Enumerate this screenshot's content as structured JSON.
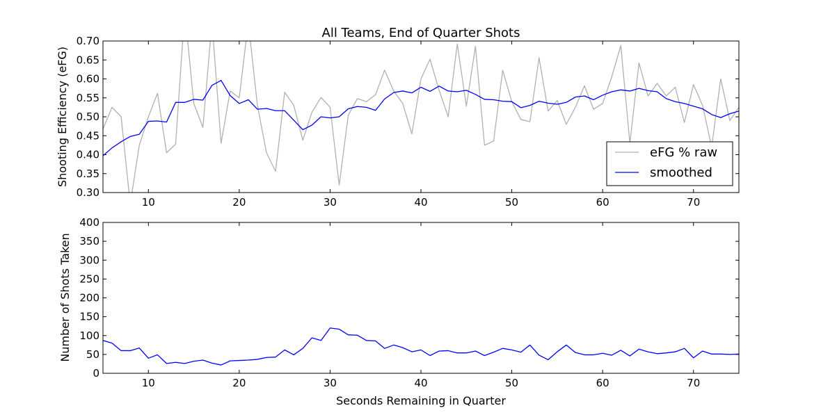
{
  "chart_data": [
    {
      "type": "line",
      "title": "All Teams, End of Quarter Shots",
      "xlabel": "",
      "ylabel": "Shooting Efficiency (eFG)",
      "xlim": [
        5,
        75
      ],
      "ylim": [
        0.3,
        0.7
      ],
      "xticks": [
        10,
        20,
        30,
        40,
        50,
        60,
        70
      ],
      "xtick_labels": [
        "10",
        "20",
        "30",
        "40",
        "50",
        "60",
        "70"
      ],
      "yticks": [
        0.3,
        0.35,
        0.4,
        0.45,
        0.5,
        0.55,
        0.6,
        0.65,
        0.7
      ],
      "ytick_labels": [
        "0.30",
        "0.35",
        "0.40",
        "0.45",
        "0.50",
        "0.55",
        "0.60",
        "0.65",
        "0.70"
      ],
      "grid": false,
      "legend_position": "lower-right",
      "x": [
        5,
        6,
        7,
        8,
        9,
        10,
        11,
        12,
        13,
        14,
        15,
        16,
        17,
        18,
        19,
        20,
        21,
        22,
        23,
        24,
        25,
        26,
        27,
        28,
        29,
        30,
        31,
        32,
        33,
        34,
        35,
        36,
        37,
        38,
        39,
        40,
        41,
        42,
        43,
        44,
        45,
        46,
        47,
        48,
        49,
        50,
        51,
        52,
        53,
        54,
        55,
        56,
        57,
        58,
        59,
        60,
        61,
        62,
        63,
        64,
        65,
        66,
        67,
        68,
        69,
        70,
        71,
        72,
        73,
        74,
        75
      ],
      "series": [
        {
          "name": "eFG % raw",
          "color": "#b0b0b0",
          "values": [
            0.468,
            0.525,
            0.5,
            0.27,
            0.425,
            0.5,
            0.562,
            0.405,
            0.428,
            0.78,
            0.535,
            0.472,
            0.75,
            0.43,
            0.568,
            0.55,
            0.75,
            0.53,
            0.405,
            0.356,
            0.565,
            0.53,
            0.438,
            0.512,
            0.551,
            0.525,
            0.32,
            0.504,
            0.548,
            0.54,
            0.558,
            0.623,
            0.568,
            0.535,
            0.455,
            0.6,
            0.652,
            0.57,
            0.5,
            0.692,
            0.528,
            0.686,
            0.425,
            0.436,
            0.623,
            0.54,
            0.493,
            0.487,
            0.656,
            0.515,
            0.543,
            0.48,
            0.525,
            0.582,
            0.52,
            0.535,
            0.605,
            0.688,
            0.43,
            0.642,
            0.555,
            0.588,
            0.555,
            0.578,
            0.485,
            0.585,
            0.53,
            0.42,
            0.6,
            0.49,
            0.525
          ]
        },
        {
          "name": "smoothed",
          "color": "#0000ff",
          "values": [
            0.397,
            0.418,
            0.434,
            0.448,
            0.454,
            0.488,
            0.489,
            0.486,
            0.538,
            0.538,
            0.546,
            0.544,
            0.583,
            0.596,
            0.556,
            0.535,
            0.545,
            0.52,
            0.522,
            0.516,
            0.516,
            0.491,
            0.466,
            0.478,
            0.5,
            0.497,
            0.5,
            0.521,
            0.527,
            0.525,
            0.517,
            0.547,
            0.564,
            0.568,
            0.563,
            0.578,
            0.567,
            0.581,
            0.568,
            0.566,
            0.57,
            0.559,
            0.546,
            0.545,
            0.541,
            0.54,
            0.524,
            0.53,
            0.541,
            0.536,
            0.533,
            0.538,
            0.552,
            0.555,
            0.545,
            0.557,
            0.566,
            0.571,
            0.568,
            0.575,
            0.569,
            0.566,
            0.548,
            0.54,
            0.535,
            0.528,
            0.521,
            0.506,
            0.498,
            0.508,
            0.515
          ]
        }
      ]
    },
    {
      "type": "line",
      "title": "",
      "xlabel": "Seconds Remaining in Quarter",
      "ylabel": "Number of Shots Taken",
      "xlim": [
        5,
        75
      ],
      "ylim": [
        0,
        400
      ],
      "xticks": [
        10,
        20,
        30,
        40,
        50,
        60,
        70
      ],
      "xtick_labels": [
        "10",
        "20",
        "30",
        "40",
        "50",
        "60",
        "70"
      ],
      "yticks": [
        0,
        50,
        100,
        150,
        200,
        250,
        300,
        350,
        400
      ],
      "ytick_labels": [
        "0",
        "50",
        "100",
        "150",
        "200",
        "250",
        "300",
        "350",
        "400"
      ],
      "grid": false,
      "x": [
        5,
        6,
        7,
        8,
        9,
        10,
        11,
        12,
        13,
        14,
        15,
        16,
        17,
        18,
        19,
        20,
        21,
        22,
        23,
        24,
        25,
        26,
        27,
        28,
        29,
        30,
        31,
        32,
        33,
        34,
        35,
        36,
        37,
        38,
        39,
        40,
        41,
        42,
        43,
        44,
        45,
        46,
        47,
        48,
        49,
        50,
        51,
        52,
        53,
        54,
        55,
        56,
        57,
        58,
        59,
        60,
        61,
        62,
        63,
        64,
        65,
        66,
        67,
        68,
        69,
        70,
        71,
        72,
        73,
        74,
        75
      ],
      "series": [
        {
          "color": "#0000ff",
          "values": [
            87,
            80,
            60,
            60,
            67,
            40,
            49,
            26,
            29,
            26,
            32,
            35,
            27,
            22,
            33,
            34,
            35,
            37,
            42,
            43,
            62,
            49,
            66,
            94,
            87,
            120,
            117,
            102,
            101,
            87,
            86,
            66,
            75,
            68,
            57,
            62,
            47,
            59,
            60,
            54,
            54,
            59,
            47,
            56,
            66,
            62,
            56,
            75,
            48,
            36,
            57,
            75,
            55,
            49,
            49,
            53,
            48,
            61,
            46,
            64,
            57,
            52,
            54,
            57,
            66,
            41,
            59,
            51,
            51,
            50,
            51
          ]
        }
      ]
    }
  ]
}
